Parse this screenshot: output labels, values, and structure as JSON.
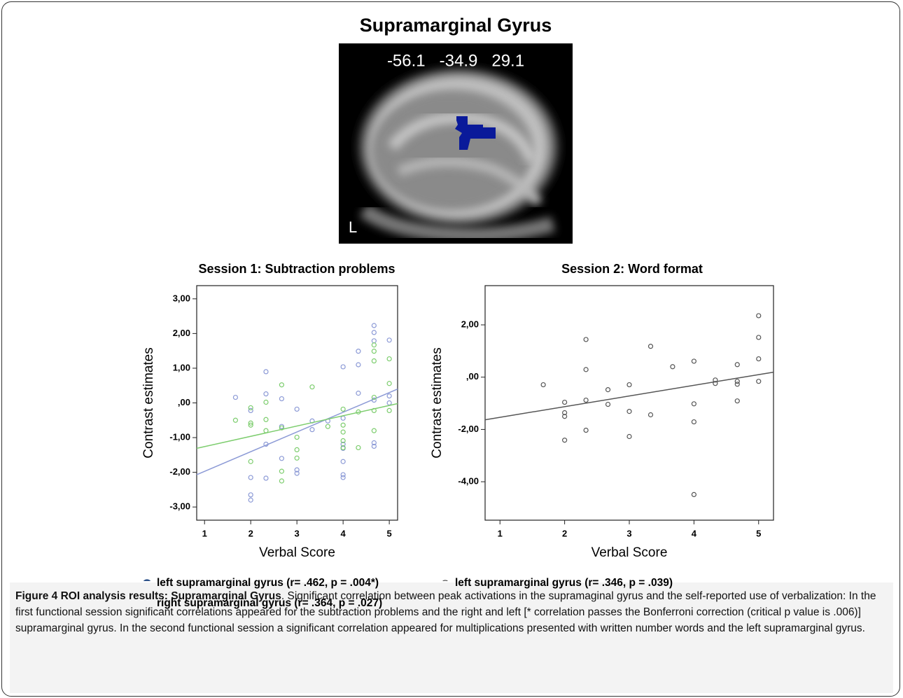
{
  "figure": {
    "title": "Supramarginal Gyrus",
    "coordinates": "-56.1   -34.9   29.1",
    "orientation": "L",
    "caption": {
      "label": "Figure 4 ROI analysis results: Supramarginal Gyrus",
      "text": ". Significant correlation between peak activations in the supramaginal gyrus and the self-reported use of verbalization: In the first functional session significant correlations appeared for the subtraction problems and the right and left [* correlation passes the Bonferroni correction (critical p value is .006)] supramarginal gyrus. In the second functional session a significant correlation appeared for multiplications presented with written number words and the left supramarginal gyrus."
    }
  },
  "chart_data": [
    {
      "type": "scatter",
      "title": "Session 1: Subtraction problems",
      "x_label": "Verbal Score",
      "y_label": "Contrast estimates",
      "xlim": [
        0.83,
        5.18
      ],
      "ylim": [
        -3.38,
        3.38
      ],
      "xticks": [
        1,
        2,
        3,
        4,
        5
      ],
      "yticks": [
        {
          "value": 3,
          "label": "3,00"
        },
        {
          "value": 2,
          "label": "2,00"
        },
        {
          "value": 1,
          "label": "1,00"
        },
        {
          "value": 0,
          "label": ",00"
        },
        {
          "value": -1,
          "label": "-1,00"
        },
        {
          "value": -2,
          "label": "-2,00"
        },
        {
          "value": -3,
          "label": "-3,00"
        }
      ],
      "series": [
        {
          "name": "left supramarginal gyrus (r= .462, p = .004*)",
          "color": "#8c9ad6",
          "legend_color": "#2c5189",
          "x": [
            1.67,
            2,
            2,
            2,
            2,
            2.33,
            2.33,
            2.33,
            2.33,
            2.67,
            2.67,
            2.67,
            3,
            3,
            3,
            3.33,
            3.33,
            3.67,
            4,
            4,
            4,
            4,
            4,
            4,
            4,
            4.33,
            4.33,
            4.33,
            4.67,
            4.67,
            4.67,
            4.67,
            4.67,
            4.67,
            5,
            5,
            5
          ],
          "values": [
            0.16,
            -0.22,
            -2.15,
            -2.65,
            -2.8,
            0.9,
            0.26,
            -1.19,
            -2.17,
            0.12,
            -1.6,
            -0.68,
            -0.18,
            -1.93,
            -2.03,
            -0.52,
            -0.77,
            -0.52,
            1.04,
            -0.44,
            -1.19,
            -1.31,
            -1.69,
            -2.07,
            -2.15,
            1.49,
            1.1,
            0.28,
            2.23,
            2.03,
            1.79,
            0.08,
            -1.15,
            -1.25,
            1.81,
            0.2,
            0
          ],
          "trendline": {
            "x": [
              0.83,
              5.18
            ],
            "y": [
              -2.07,
              0.4
            ]
          }
        },
        {
          "name": "right supramarginal gyrus (r= .364, p = .027)",
          "color": "#7dcd6e",
          "legend_color": "#7ac943",
          "x": [
            1.67,
            2,
            2,
            2,
            2,
            2.33,
            2.33,
            2.33,
            2.67,
            2.67,
            2.67,
            2.67,
            3,
            3,
            3,
            3.33,
            3.67,
            4,
            4,
            4,
            4,
            4,
            4.33,
            4.33,
            4.67,
            4.67,
            4.67,
            4.67,
            4.67,
            4.67,
            5,
            5,
            5
          ],
          "values": [
            -0.5,
            -0.14,
            -0.58,
            -0.64,
            -1.69,
            0.02,
            -0.48,
            -0.8,
            0.52,
            -0.72,
            -1.97,
            -2.25,
            -0.99,
            -1.35,
            -1.59,
            0.46,
            -0.68,
            -0.18,
            -0.64,
            -0.84,
            -1.09,
            -1.29,
            -0.26,
            -1.29,
            1.67,
            1.49,
            1.21,
            0.16,
            -0.22,
            -0.8,
            1.27,
            0.56,
            -0.22
          ],
          "trendline": {
            "x": [
              0.83,
              5.18
            ],
            "y": [
              -1.31,
              -0.02
            ]
          }
        }
      ]
    },
    {
      "type": "scatter",
      "title": "Session 2: Word format",
      "x_label": "Verbal Score",
      "y_label": "Contrast estimates",
      "xlim": [
        0.77,
        5.23
      ],
      "ylim": [
        -5.47,
        3.5
      ],
      "xticks": [
        1,
        2,
        3,
        4,
        5
      ],
      "yticks": [
        {
          "value": 2,
          "label": "2,00"
        },
        {
          "value": 0,
          "label": ",00"
        },
        {
          "value": -2,
          "label": "-2,00"
        },
        {
          "value": -4,
          "label": "-4,00"
        }
      ],
      "series": [
        {
          "name": "left supramarginal gyrus (r= .346, p = .039)",
          "color": "#555555",
          "legend_color": "#555555",
          "x": [
            1.67,
            2,
            2,
            2,
            2,
            2.33,
            2.33,
            2.33,
            2.33,
            2.67,
            2.67,
            3,
            3,
            3,
            3.33,
            3.33,
            3.67,
            4,
            4,
            4,
            4,
            4.33,
            4.33,
            4.67,
            4.67,
            4.67,
            4.67,
            5,
            5,
            5,
            5
          ],
          "values": [
            -0.29,
            -0.96,
            -1.36,
            -1.5,
            -2.41,
            1.44,
            0.29,
            -0.88,
            -2.03,
            -0.48,
            -1.04,
            -0.29,
            -1.31,
            -2.27,
            1.18,
            -1.44,
            0.4,
            0.61,
            -1.02,
            -1.71,
            -4.49,
            -0.11,
            -0.24,
            0.48,
            -0.16,
            -0.27,
            -0.91,
            2.35,
            1.52,
            0.7,
            -0.16
          ],
          "trendline": {
            "x": [
              0.77,
              5.23
            ],
            "y": [
              -1.63,
              0.19
            ]
          }
        }
      ]
    }
  ]
}
